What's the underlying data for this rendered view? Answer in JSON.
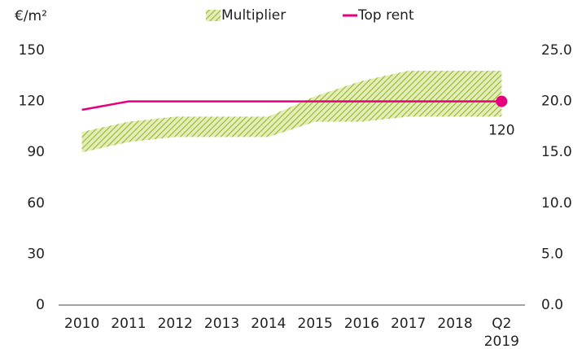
{
  "chart_data": {
    "type": "line",
    "y_unit": "€/m²",
    "categories": [
      "2010",
      "2011",
      "2012",
      "2013",
      "2014",
      "2015",
      "2016",
      "2017",
      "2018",
      "Q2\n2019"
    ],
    "ylim": [
      0,
      150
    ],
    "yticks": [
      0,
      30,
      60,
      90,
      120,
      150
    ],
    "y2lim": [
      0,
      25
    ],
    "y2ticks": [
      {
        "value": 0,
        "label": "0.0"
      },
      {
        "value": 5,
        "label": "5.0"
      },
      {
        "value": 10,
        "label": "10.0"
      },
      {
        "value": 15,
        "label": "15.0"
      },
      {
        "value": 20,
        "label": "20.0"
      },
      {
        "value": 25,
        "label": "25.0"
      }
    ],
    "series": [
      {
        "name": "Top rent",
        "color": "#e6007e",
        "values": [
          115,
          120,
          120,
          120,
          120,
          120,
          120,
          120,
          120,
          120
        ]
      },
      {
        "name": "Multiplier",
        "color": "#9bbb2c",
        "axis": "y2",
        "kind": "band",
        "low": [
          15.0,
          16.0,
          16.5,
          16.5,
          16.5,
          18.0,
          18.0,
          18.5,
          18.5,
          18.5
        ],
        "high": [
          17.0,
          18.0,
          18.5,
          18.5,
          18.5,
          20.5,
          22.0,
          23.0,
          23.0,
          23.0
        ]
      }
    ],
    "legend": "top"
  }
}
